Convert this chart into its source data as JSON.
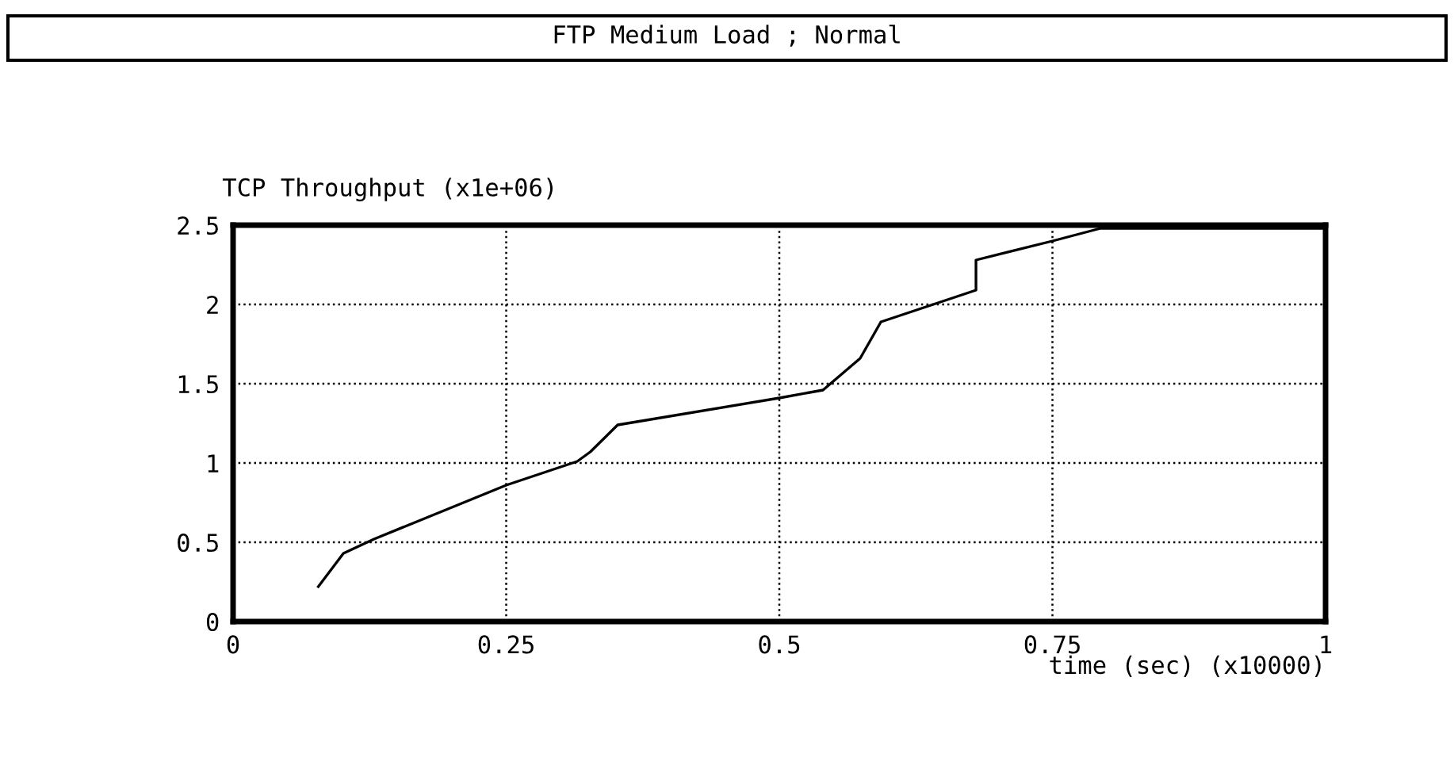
{
  "chart_data": {
    "type": "line",
    "title": "FTP Medium Load ; Normal",
    "ylabel": "TCP Throughput (x1e+06)",
    "xlabel": "time (sec) (x10000)",
    "series": [
      {
        "color": "#000000",
        "x": [
          0.078,
          0.101,
          0.129,
          0.25,
          0.315,
          0.327,
          0.352,
          0.5,
          0.54,
          0.574,
          0.593,
          0.68,
          0.68,
          0.75,
          0.794,
          1.0
        ],
        "values": [
          0.22,
          0.43,
          0.52,
          0.86,
          1.01,
          1.07,
          1.24,
          1.41,
          1.46,
          1.66,
          1.89,
          2.09,
          2.28,
          2.4,
          2.48,
          2.48
        ]
      }
    ],
    "xlim": [
      0,
      1
    ],
    "xticks": [
      0,
      0.25,
      0.5,
      0.75,
      1
    ],
    "ylim": [
      0,
      2.5
    ],
    "yticks": [
      0,
      0.5,
      1,
      1.5,
      2,
      2.5
    ],
    "grid": true,
    "line_style": "solid",
    "marker": "none",
    "legend": false
  }
}
